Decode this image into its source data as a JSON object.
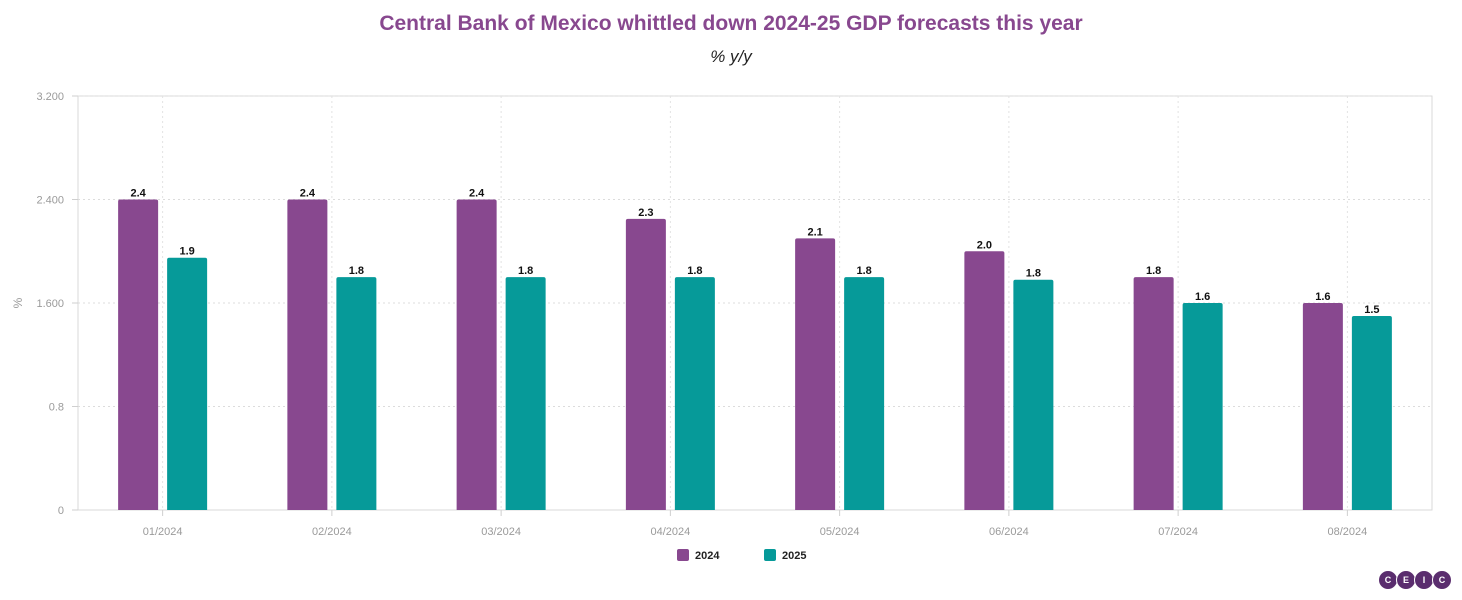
{
  "chart_data": {
    "type": "bar",
    "title": "Central Bank of Mexico whittled down 2024-25 GDP forecasts this year",
    "subtitle": "% y/y",
    "ylabel": "%",
    "xlabel": "",
    "ylim": [
      0,
      3.2
    ],
    "yticks": [
      0,
      0.8,
      1.6,
      2.4,
      3.2
    ],
    "ytick_labels": [
      "0",
      "0.8",
      "1.600",
      "2.400",
      "3.200"
    ],
    "categories": [
      "01/2024",
      "02/2024",
      "03/2024",
      "04/2024",
      "05/2024",
      "06/2024",
      "07/2024",
      "08/2024"
    ],
    "series": [
      {
        "name": "2024",
        "color": "#88488f",
        "values": [
          2.4,
          2.4,
          2.4,
          2.25,
          2.1,
          2.0,
          1.8,
          1.6
        ],
        "labels": [
          "2.4",
          "2.4",
          "2.4",
          "2.3",
          "2.1",
          "2.0",
          "1.8",
          "1.6"
        ]
      },
      {
        "name": "2025",
        "color": "#069a99",
        "values": [
          1.95,
          1.8,
          1.8,
          1.8,
          1.8,
          1.78,
          1.6,
          1.5
        ],
        "labels": [
          "1.9",
          "1.8",
          "1.8",
          "1.8",
          "1.8",
          "1.8",
          "1.6",
          "1.5"
        ]
      }
    ],
    "grid": true,
    "legend_position": "bottom-center"
  },
  "logo": {
    "letters": [
      "C",
      "E",
      "I",
      "C"
    ],
    "color": "#5a2d6e"
  }
}
